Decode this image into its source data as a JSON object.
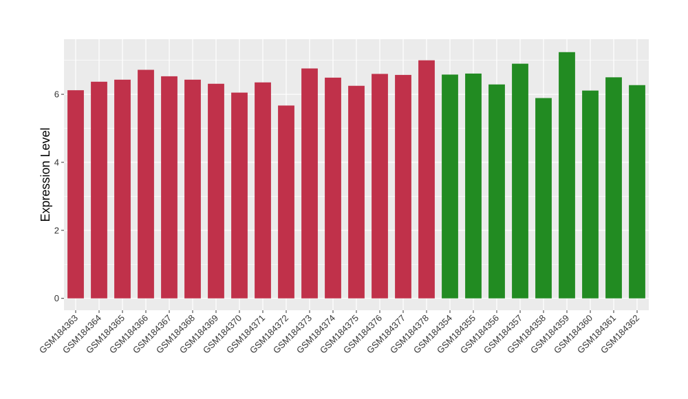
{
  "chart_data": {
    "type": "bar",
    "ylabel": "Expression Level",
    "xlabel": "",
    "ylim": [
      -0.35,
      7.62
    ],
    "yticks": [
      0,
      2,
      4,
      6
    ],
    "grid": true,
    "background": "#EBEBEB",
    "categories": [
      "GSM184363",
      "GSM184364",
      "GSM184365",
      "GSM184366",
      "GSM184367",
      "GSM184368",
      "GSM184369",
      "GSM184370",
      "GSM184371",
      "GSM184372",
      "GSM184373",
      "GSM184374",
      "GSM184375",
      "GSM184376",
      "GSM184377",
      "GSM184378",
      "GSM184354",
      "GSM184355",
      "GSM184356",
      "GSM184357",
      "GSM184358",
      "GSM184359",
      "GSM184360",
      "GSM184361",
      "GSM184362"
    ],
    "values": [
      6.12,
      6.37,
      6.43,
      6.72,
      6.53,
      6.43,
      6.31,
      6.05,
      6.35,
      5.67,
      6.76,
      6.49,
      6.25,
      6.6,
      6.57,
      7.0,
      6.58,
      6.61,
      6.29,
      6.9,
      5.89,
      7.24,
      6.11,
      6.5,
      6.27
    ],
    "colors": [
      "#C0314A",
      "#C0314A",
      "#C0314A",
      "#C0314A",
      "#C0314A",
      "#C0314A",
      "#C0314A",
      "#C0314A",
      "#C0314A",
      "#C0314A",
      "#C0314A",
      "#C0314A",
      "#C0314A",
      "#C0314A",
      "#C0314A",
      "#C0314A",
      "#228B22",
      "#228B22",
      "#228B22",
      "#228B22",
      "#228B22",
      "#228B22",
      "#228B22",
      "#228B22",
      "#228B22"
    ]
  }
}
